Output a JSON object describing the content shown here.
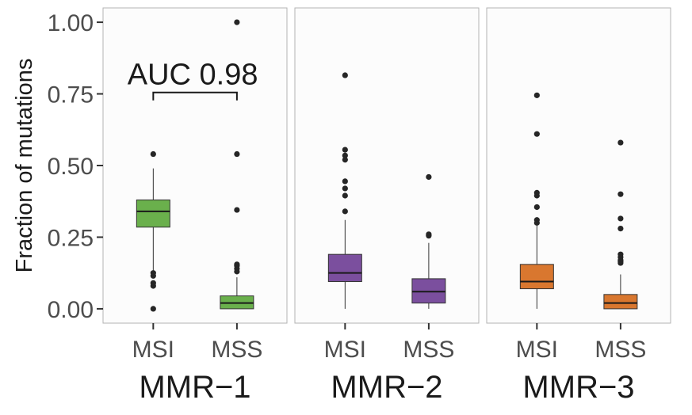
{
  "chart_data": {
    "type": "box",
    "ylabel": "Fraction of mutations",
    "ylim": [
      -0.05,
      1.05
    ],
    "yticks": [
      "0.00",
      "0.25",
      "0.50",
      "0.75",
      "1.00"
    ],
    "ytick_values": [
      0,
      0.25,
      0.5,
      0.75,
      1.0
    ],
    "categories": [
      "MSI",
      "MSS"
    ],
    "grid": false,
    "facets": [
      {
        "name": "MMR−1",
        "color": "#6ab04c",
        "groups": [
          {
            "category": "MSI",
            "whisker_low": 0.13,
            "q1": 0.285,
            "median": 0.34,
            "q3": 0.38,
            "whisker_high": 0.49,
            "outliers": [
              0.54,
              0.125,
              0.115,
              0.09,
              0.08,
              0.0
            ]
          },
          {
            "category": "MSS",
            "whisker_low": 0.0,
            "q1": 0.0,
            "median": 0.02,
            "q3": 0.045,
            "whisker_high": 0.11,
            "outliers": [
              1.0,
              0.54,
              0.345,
              0.155,
              0.15,
              0.14,
              0.13
            ]
          }
        ],
        "annotation": {
          "text": "AUC 0.98",
          "value": 0.755
        }
      },
      {
        "name": "MMR−2",
        "color": "#7b4f9e",
        "groups": [
          {
            "category": "MSI",
            "whisker_low": 0.0,
            "q1": 0.095,
            "median": 0.125,
            "q3": 0.19,
            "whisker_high": 0.31,
            "outliers": [
              0.815,
              0.555,
              0.535,
              0.52,
              0.445,
              0.42,
              0.395,
              0.34
            ]
          },
          {
            "category": "MSS",
            "whisker_low": 0.0,
            "q1": 0.02,
            "median": 0.06,
            "q3": 0.105,
            "whisker_high": 0.23,
            "outliers": [
              0.46,
              0.26,
              0.255
            ]
          }
        ]
      },
      {
        "name": "MMR−3",
        "color": "#d9772f",
        "groups": [
          {
            "category": "MSI",
            "whisker_low": 0.0,
            "q1": 0.07,
            "median": 0.095,
            "q3": 0.155,
            "whisker_high": 0.29,
            "outliers": [
              0.745,
              0.61,
              0.405,
              0.395,
              0.355,
              0.31,
              0.3
            ]
          },
          {
            "category": "MSS",
            "whisker_low": 0.0,
            "q1": 0.0,
            "median": 0.02,
            "q3": 0.05,
            "whisker_high": 0.12,
            "outliers": [
              0.58,
              0.4,
              0.315,
              0.28,
              0.19,
              0.18,
              0.17,
              0.165,
              0.16
            ]
          }
        ]
      }
    ]
  }
}
